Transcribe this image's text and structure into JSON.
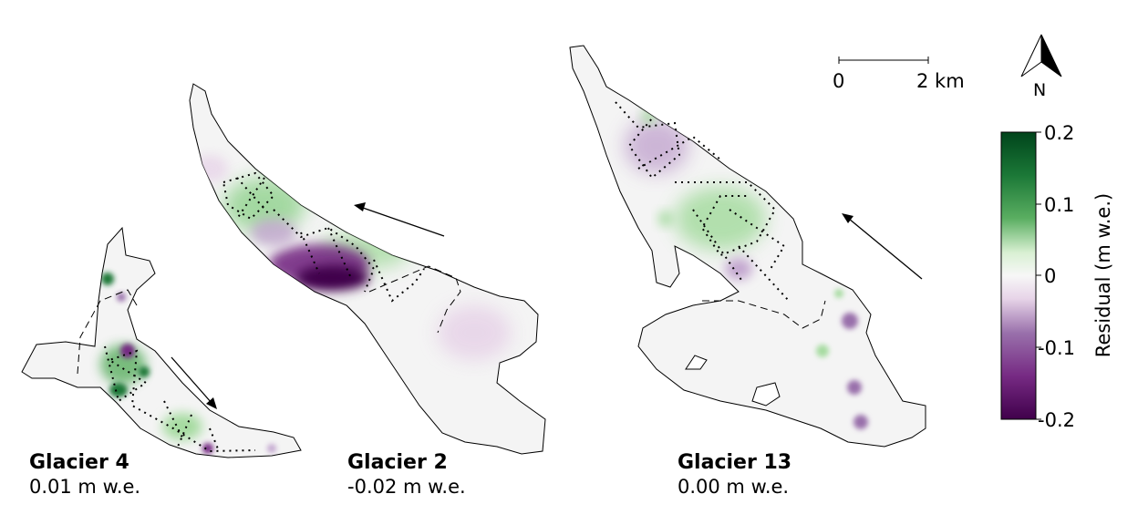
{
  "glaciers": [
    {
      "name": "Glacier 4",
      "value": "0.01 m w.e."
    },
    {
      "name": "Glacier 2",
      "value": "-0.02 m w.e."
    },
    {
      "name": "Glacier 13",
      "value": "0.00 m w.e."
    }
  ],
  "scalebar": {
    "start_label": "0",
    "end_label": "2 km"
  },
  "north_arrow": {
    "label": "N",
    "icon": "north-arrow-icon"
  },
  "colorbar": {
    "title": "Residual (m w.e.)",
    "ticks": [
      "0.2",
      "0.1",
      "0",
      "-0.1",
      "-0.2"
    ],
    "range": [
      -0.2,
      0.2
    ],
    "colors": {
      "max": "#00441b",
      "mid": "#f7f7f7",
      "min": "#40004b"
    }
  }
}
